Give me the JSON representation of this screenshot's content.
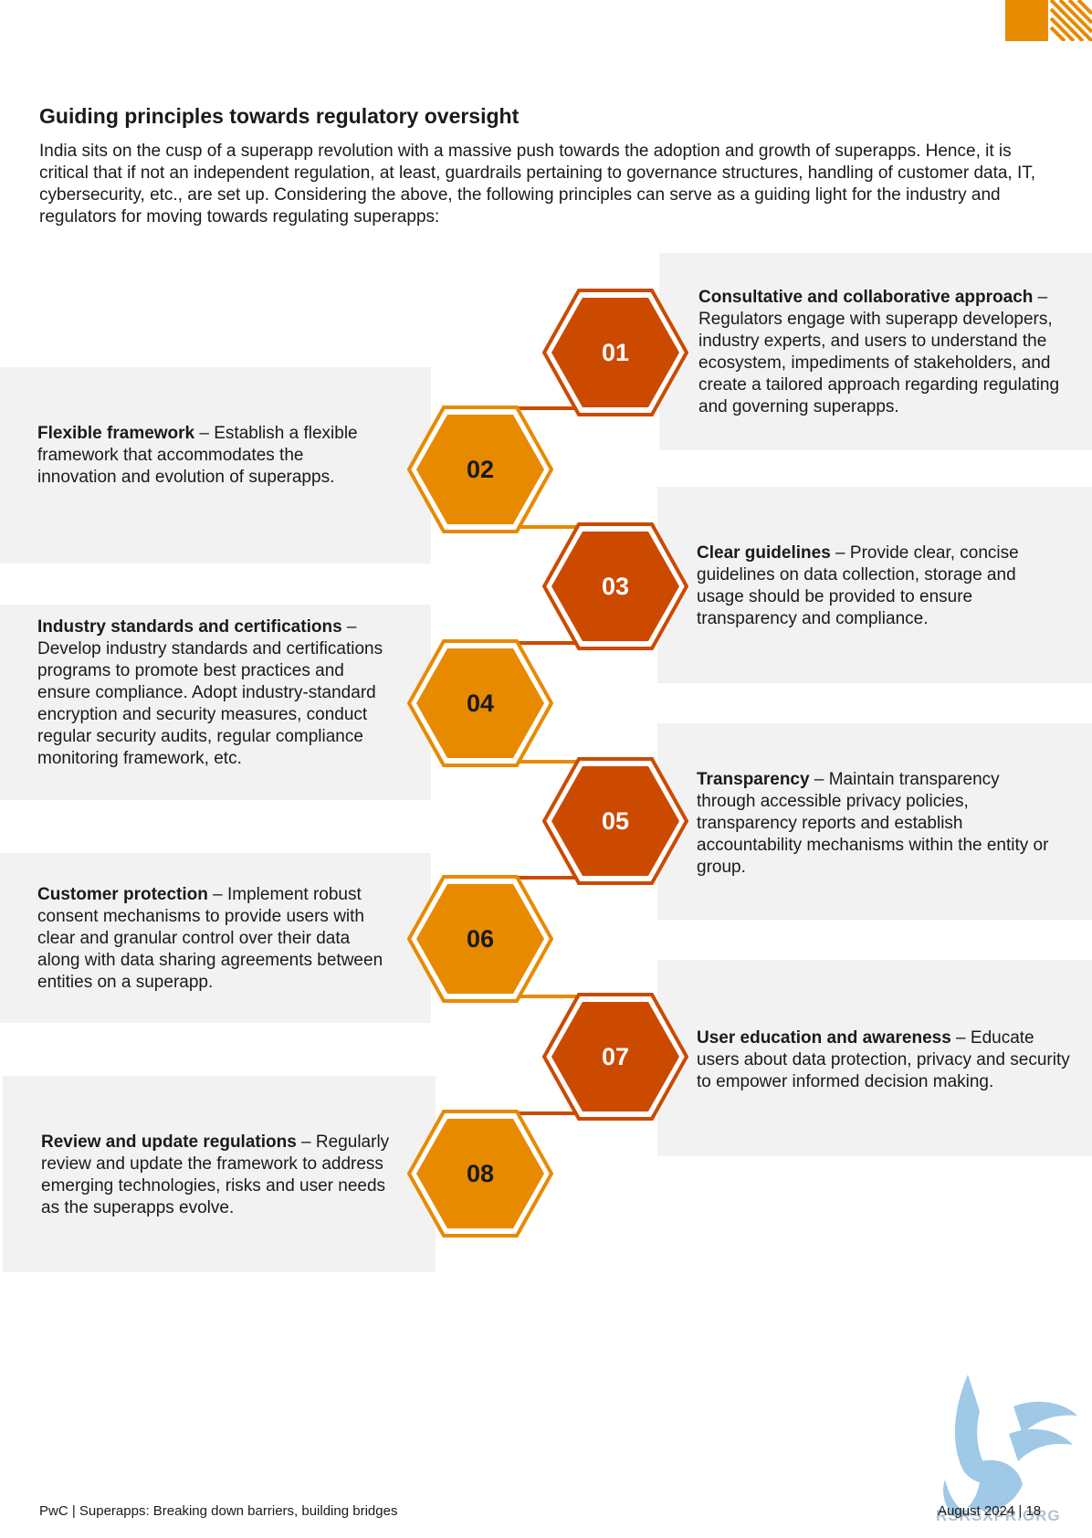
{
  "header": {
    "title": "Guiding principles towards regulatory oversight",
    "intro": "India sits on the cusp of a superapp revolution with a massive push towards the adoption and growth of superapps. Hence, it is critical that if not an independent regulation, at least, guardrails pertaining to governance structures, handling of customer data, IT, cybersecurity, etc., are set up. Considering the above, the following principles can serve as a guiding light for the industry and regulators for moving towards regulating superapps:"
  },
  "colors": {
    "accent_orange": "#e88a00",
    "accent_red": "#cc4a00",
    "panel_bg": "#f2f2f2"
  },
  "principles": [
    {
      "number": "01",
      "title": "Consultative and collaborative approach",
      "sep": " – ",
      "body": "Regulators engage with superapp developers, industry experts, and users to understand the ecosystem, impediments of stakeholders, and create a tailored approach regarding regulating and governing superapps."
    },
    {
      "number": "02",
      "title": "Flexible framework",
      "sep": " – ",
      "body": "Establish a flexible framework that accommodates the innovation and evolution of superapps."
    },
    {
      "number": "03",
      "title": "Clear guidelines",
      "sep": " – ",
      "body": "Provide clear, concise guidelines on data collection, storage and usage should be provided to ensure transparency and compliance."
    },
    {
      "number": "04",
      "title": "Industry standards and certifications",
      "sep": " – ",
      "body": "Develop industry standards and certifications programs to promote best practices and ensure compliance. Adopt industry-standard encryption and security measures, conduct regular security audits, regular compliance monitoring framework, etc."
    },
    {
      "number": "05",
      "title": "Transparency",
      "sep": " – ",
      "body": "Maintain transparency through accessible privacy policies, transparency reports and establish accountability mechanisms within the entity or group."
    },
    {
      "number": "06",
      "title": "Customer protection",
      "sep": " – ",
      "body": "Implement robust consent mechanisms to provide users with clear and granular control over their data along with data sharing agreements between entities on a superapp."
    },
    {
      "number": "07",
      "title": "User education and awareness",
      "sep": " – ",
      "body": "Educate users about data protection, privacy and security to empower informed decision making."
    },
    {
      "number": "08",
      "title": "Review and update regulations",
      "sep": " – ",
      "body": "Regularly review and update the framework to address emerging technologies, risks and user needs as the superapps evolve."
    }
  ],
  "footer": {
    "left": "PwC | Superapps: Breaking down barriers, building bridges",
    "right": "August 2024 | 18",
    "watermark": "RSRSXPR.ORG"
  }
}
